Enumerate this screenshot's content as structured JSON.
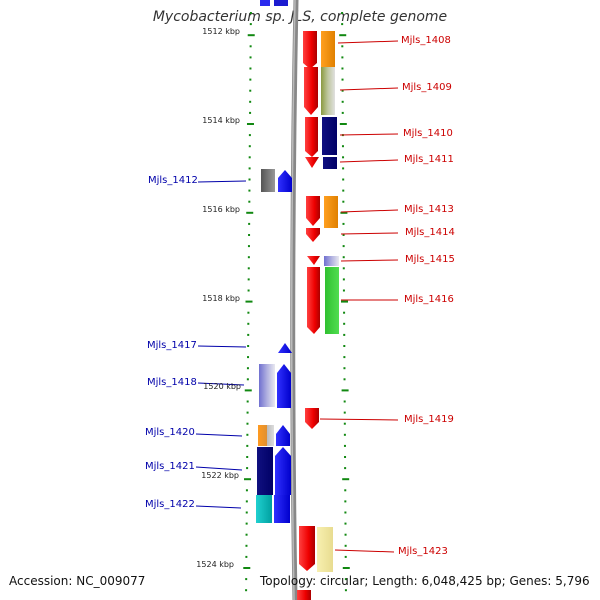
{
  "title": "Mycobacterium sp. JLS, complete genome",
  "footer": {
    "accession": "Accession: NC_009077",
    "info": "Topology: circular; Length: 6,048,425 bp; Genes: 5,796"
  },
  "axis": {
    "ticks": [
      {
        "label": "1512 kbp"
      },
      {
        "label": "1514 kbp"
      },
      {
        "label": "1516 kbp"
      },
      {
        "label": "1518 kbp"
      },
      {
        "label": "1520 kbp"
      },
      {
        "label": "1522 kbp"
      },
      {
        "label": "1524 kbp"
      }
    ]
  },
  "genes": {
    "right": [
      {
        "name": "Mjls_1408"
      },
      {
        "name": "Mjls_1409"
      },
      {
        "name": "Mjls_1410"
      },
      {
        "name": "Mjls_1411"
      },
      {
        "name": "Mjls_1413"
      },
      {
        "name": "Mjls_1414"
      },
      {
        "name": "Mjls_1415"
      },
      {
        "name": "Mjls_1416"
      },
      {
        "name": "Mjls_1419"
      },
      {
        "name": "Mjls_1423"
      }
    ],
    "left": [
      {
        "name": "Mjls_1412"
      },
      {
        "name": "Mjls_1417"
      },
      {
        "name": "Mjls_1418"
      },
      {
        "name": "Mjls_1420"
      },
      {
        "name": "Mjls_1421"
      },
      {
        "name": "Mjls_1422"
      }
    ]
  },
  "colors": {
    "red_label": "#cc0000",
    "blue_label": "#0000aa",
    "tick_green": "#118811",
    "backbone": "#888888"
  }
}
